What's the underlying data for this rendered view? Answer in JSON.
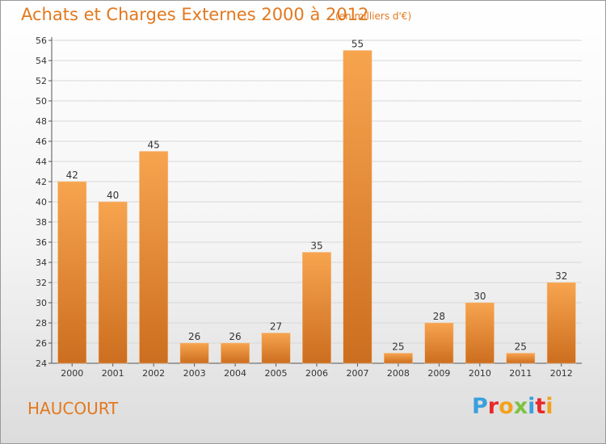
{
  "header": {
    "title": "Achats et Charges Externes 2000 à 2012",
    "subtitle": "(en milliers d'€)"
  },
  "footer": {
    "place": "HAUCOURT",
    "logo_letters": [
      "P",
      "r",
      "o",
      "x",
      "i",
      "t",
      "i"
    ],
    "logo_colors": [
      "#3aa0dc",
      "#e9282b",
      "#f2a21b",
      "#7cc242",
      "#3aa0dc",
      "#e9282b",
      "#f2a21b"
    ]
  },
  "colors": {
    "bar_top": "#f7a44f",
    "bar_bottom": "#cc6e1f",
    "accent": "#e3781e"
  },
  "chart_data": {
    "type": "bar",
    "categories": [
      "2000",
      "2001",
      "2002",
      "2003",
      "2004",
      "2005",
      "2006",
      "2007",
      "2008",
      "2009",
      "2010",
      "2011",
      "2012"
    ],
    "values": [
      42,
      40,
      45,
      26,
      26,
      27,
      35,
      55,
      25,
      28,
      30,
      25,
      32
    ],
    "ylim": [
      24,
      56
    ],
    "yticks": [
      24,
      26,
      28,
      30,
      32,
      34,
      36,
      38,
      40,
      42,
      44,
      46,
      48,
      50,
      52,
      54,
      56
    ],
    "grid": "horizontal",
    "legend": "none"
  }
}
